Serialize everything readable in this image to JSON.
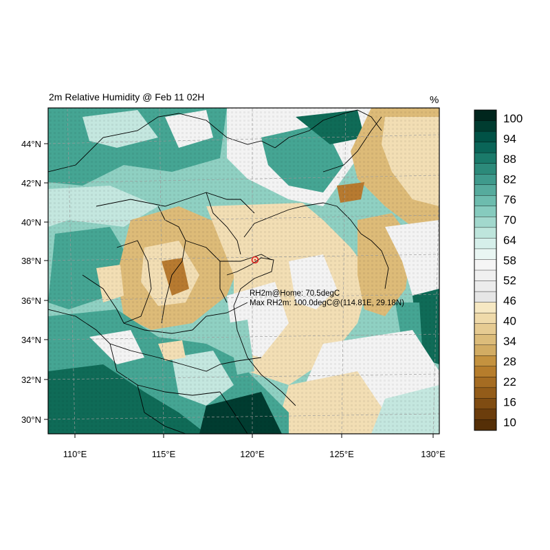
{
  "map": {
    "title": "2m Relative Humidity @ Feb 11 02H",
    "units": "%",
    "lat_labels": [
      "44°N",
      "42°N",
      "40°N",
      "38°N",
      "36°N",
      "34°N",
      "32°N",
      "30°N"
    ],
    "lon_labels": [
      "110°E",
      "115°E",
      "120°E",
      "125°E",
      "130°E"
    ],
    "home_marker": {
      "lon": 120.1,
      "lat": 38.05
    },
    "annotations": {
      "home_line": "RH2m@Home: 70.5degC",
      "max_line": "Max RH2m: 100.0degC@(114.81E, 29.18N)"
    },
    "colors": {
      "very_dry": "#6b3f10",
      "dry_brown": "#b77a30",
      "tan": "#ddbb78",
      "light_tan": "#f2deb4",
      "near_white": "#f3f3f3",
      "pale_teal": "#c4e7df",
      "light_teal": "#8fd0c2",
      "teal": "#45a593",
      "dark_teal": "#0f6b57",
      "deepest": "#003c30",
      "border": "#000000",
      "home_marker": "#e02020"
    }
  },
  "colorbar": {
    "labels": [
      "100",
      "94",
      "88",
      "82",
      "76",
      "70",
      "64",
      "58",
      "52",
      "46",
      "40",
      "34",
      "28",
      "22",
      "16",
      "10"
    ],
    "colors": [
      "#00261d",
      "#003c30",
      "#015246",
      "#0a6558",
      "#1a7a6a",
      "#2c8a7a",
      "#3f9a8c",
      "#56ab9d",
      "#6dbcae",
      "#86cbbe",
      "#a2d8cd",
      "#bee5dc",
      "#d6efea",
      "#e9f6f3",
      "#f5f5f5",
      "#f0f0f0",
      "#ececec",
      "#e6e6e6",
      "#f6e8c3",
      "#efdaaa",
      "#e6cb92",
      "#dcbc7a",
      "#d2ac63",
      "#c4923f",
      "#b67d2c",
      "#a56c22",
      "#935c19",
      "#7f4c12",
      "#6b3d0c",
      "#552f07"
    ]
  }
}
